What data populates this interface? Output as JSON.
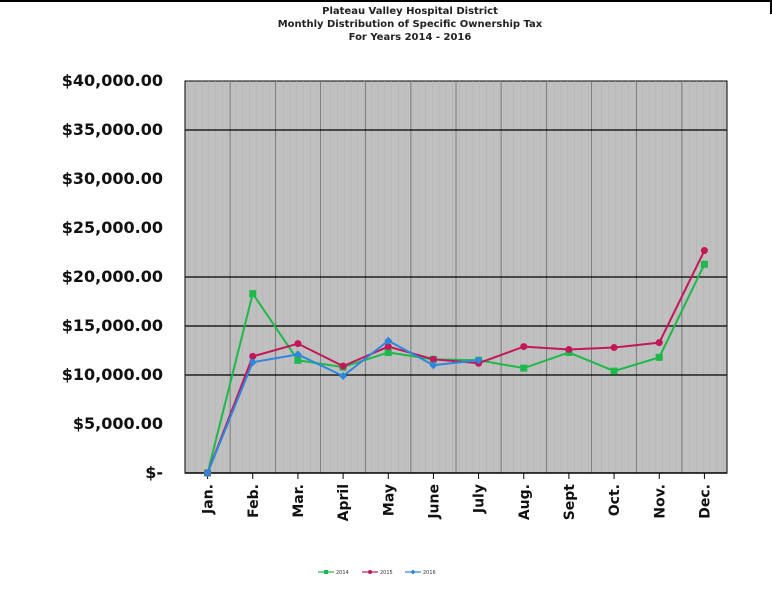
{
  "chart_data": {
    "type": "line",
    "title": "Plateau Valley Hospital District",
    "subtitle": "Monthly Distribution of Specific Ownership Tax",
    "subtitle2": "For Years 2014 - 2016",
    "categories": [
      "Jan.",
      "Feb.",
      "Mar.",
      "April",
      "May",
      "June",
      "July",
      "Aug.",
      "Sept",
      "Oct.",
      "Nov.",
      "Dec."
    ],
    "ylim": [
      0,
      40000
    ],
    "yticks": [
      0,
      5000,
      10000,
      15000,
      20000,
      25000,
      30000,
      35000,
      40000
    ],
    "ytick_labels": [
      "$-",
      "$5,000.00",
      "$10,000.00",
      "$15,000.00",
      "$20,000.00",
      "$25,000.00",
      "$30,000.00",
      "$35,000.00",
      "$40,000.00"
    ],
    "grid": true,
    "legend_position": "bottom",
    "plot_background": "#c0c0c0",
    "series": [
      {
        "name": "2014",
        "color": "#1fb84a",
        "marker": "square",
        "values": [
          0,
          18300,
          11500,
          10800,
          12300,
          11600,
          11500,
          10700,
          12300,
          10400,
          11800,
          21300
        ]
      },
      {
        "name": "2015",
        "color": "#c2185b",
        "marker": "circle",
        "values": [
          0,
          11900,
          13200,
          10900,
          12900,
          11600,
          11200,
          12900,
          12600,
          12800,
          13300,
          22700
        ]
      },
      {
        "name": "2016",
        "color": "#2e86de",
        "marker": "diamond",
        "values": [
          0,
          11300,
          12100,
          9900,
          13500,
          11000,
          11500,
          null,
          null,
          null,
          null,
          null
        ]
      }
    ]
  }
}
